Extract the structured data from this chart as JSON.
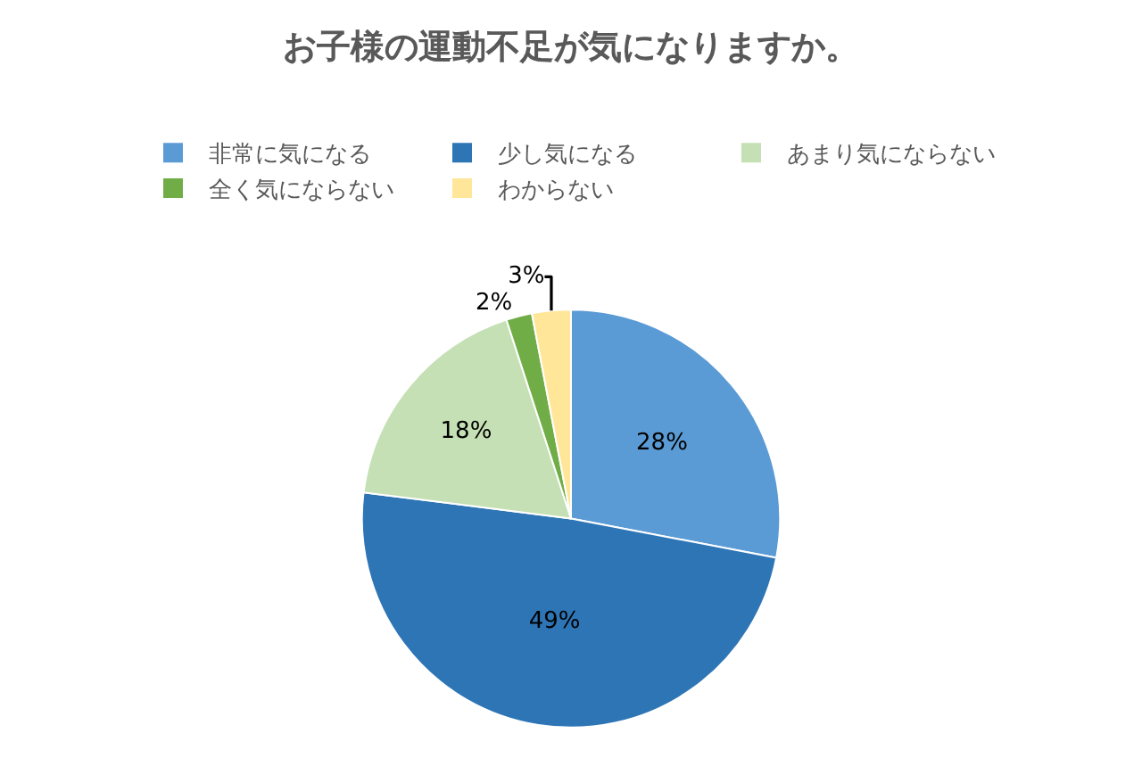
{
  "chart_data": {
    "type": "pie",
    "title": "お子様の運動不足が気になりますか。",
    "categories": [
      "非常に気になる",
      "少し気になる",
      "あまり気にならない",
      "全く気にならない",
      "わからない"
    ],
    "values": [
      28,
      49,
      18,
      2,
      3
    ],
    "colors": [
      "#5b9bd5",
      "#2e75b6",
      "#c5e0b4",
      "#70ad47",
      "#ffe699"
    ],
    "value_labels": [
      "28%",
      "49%",
      "18%",
      "2%",
      "3%"
    ],
    "legend": "top"
  }
}
